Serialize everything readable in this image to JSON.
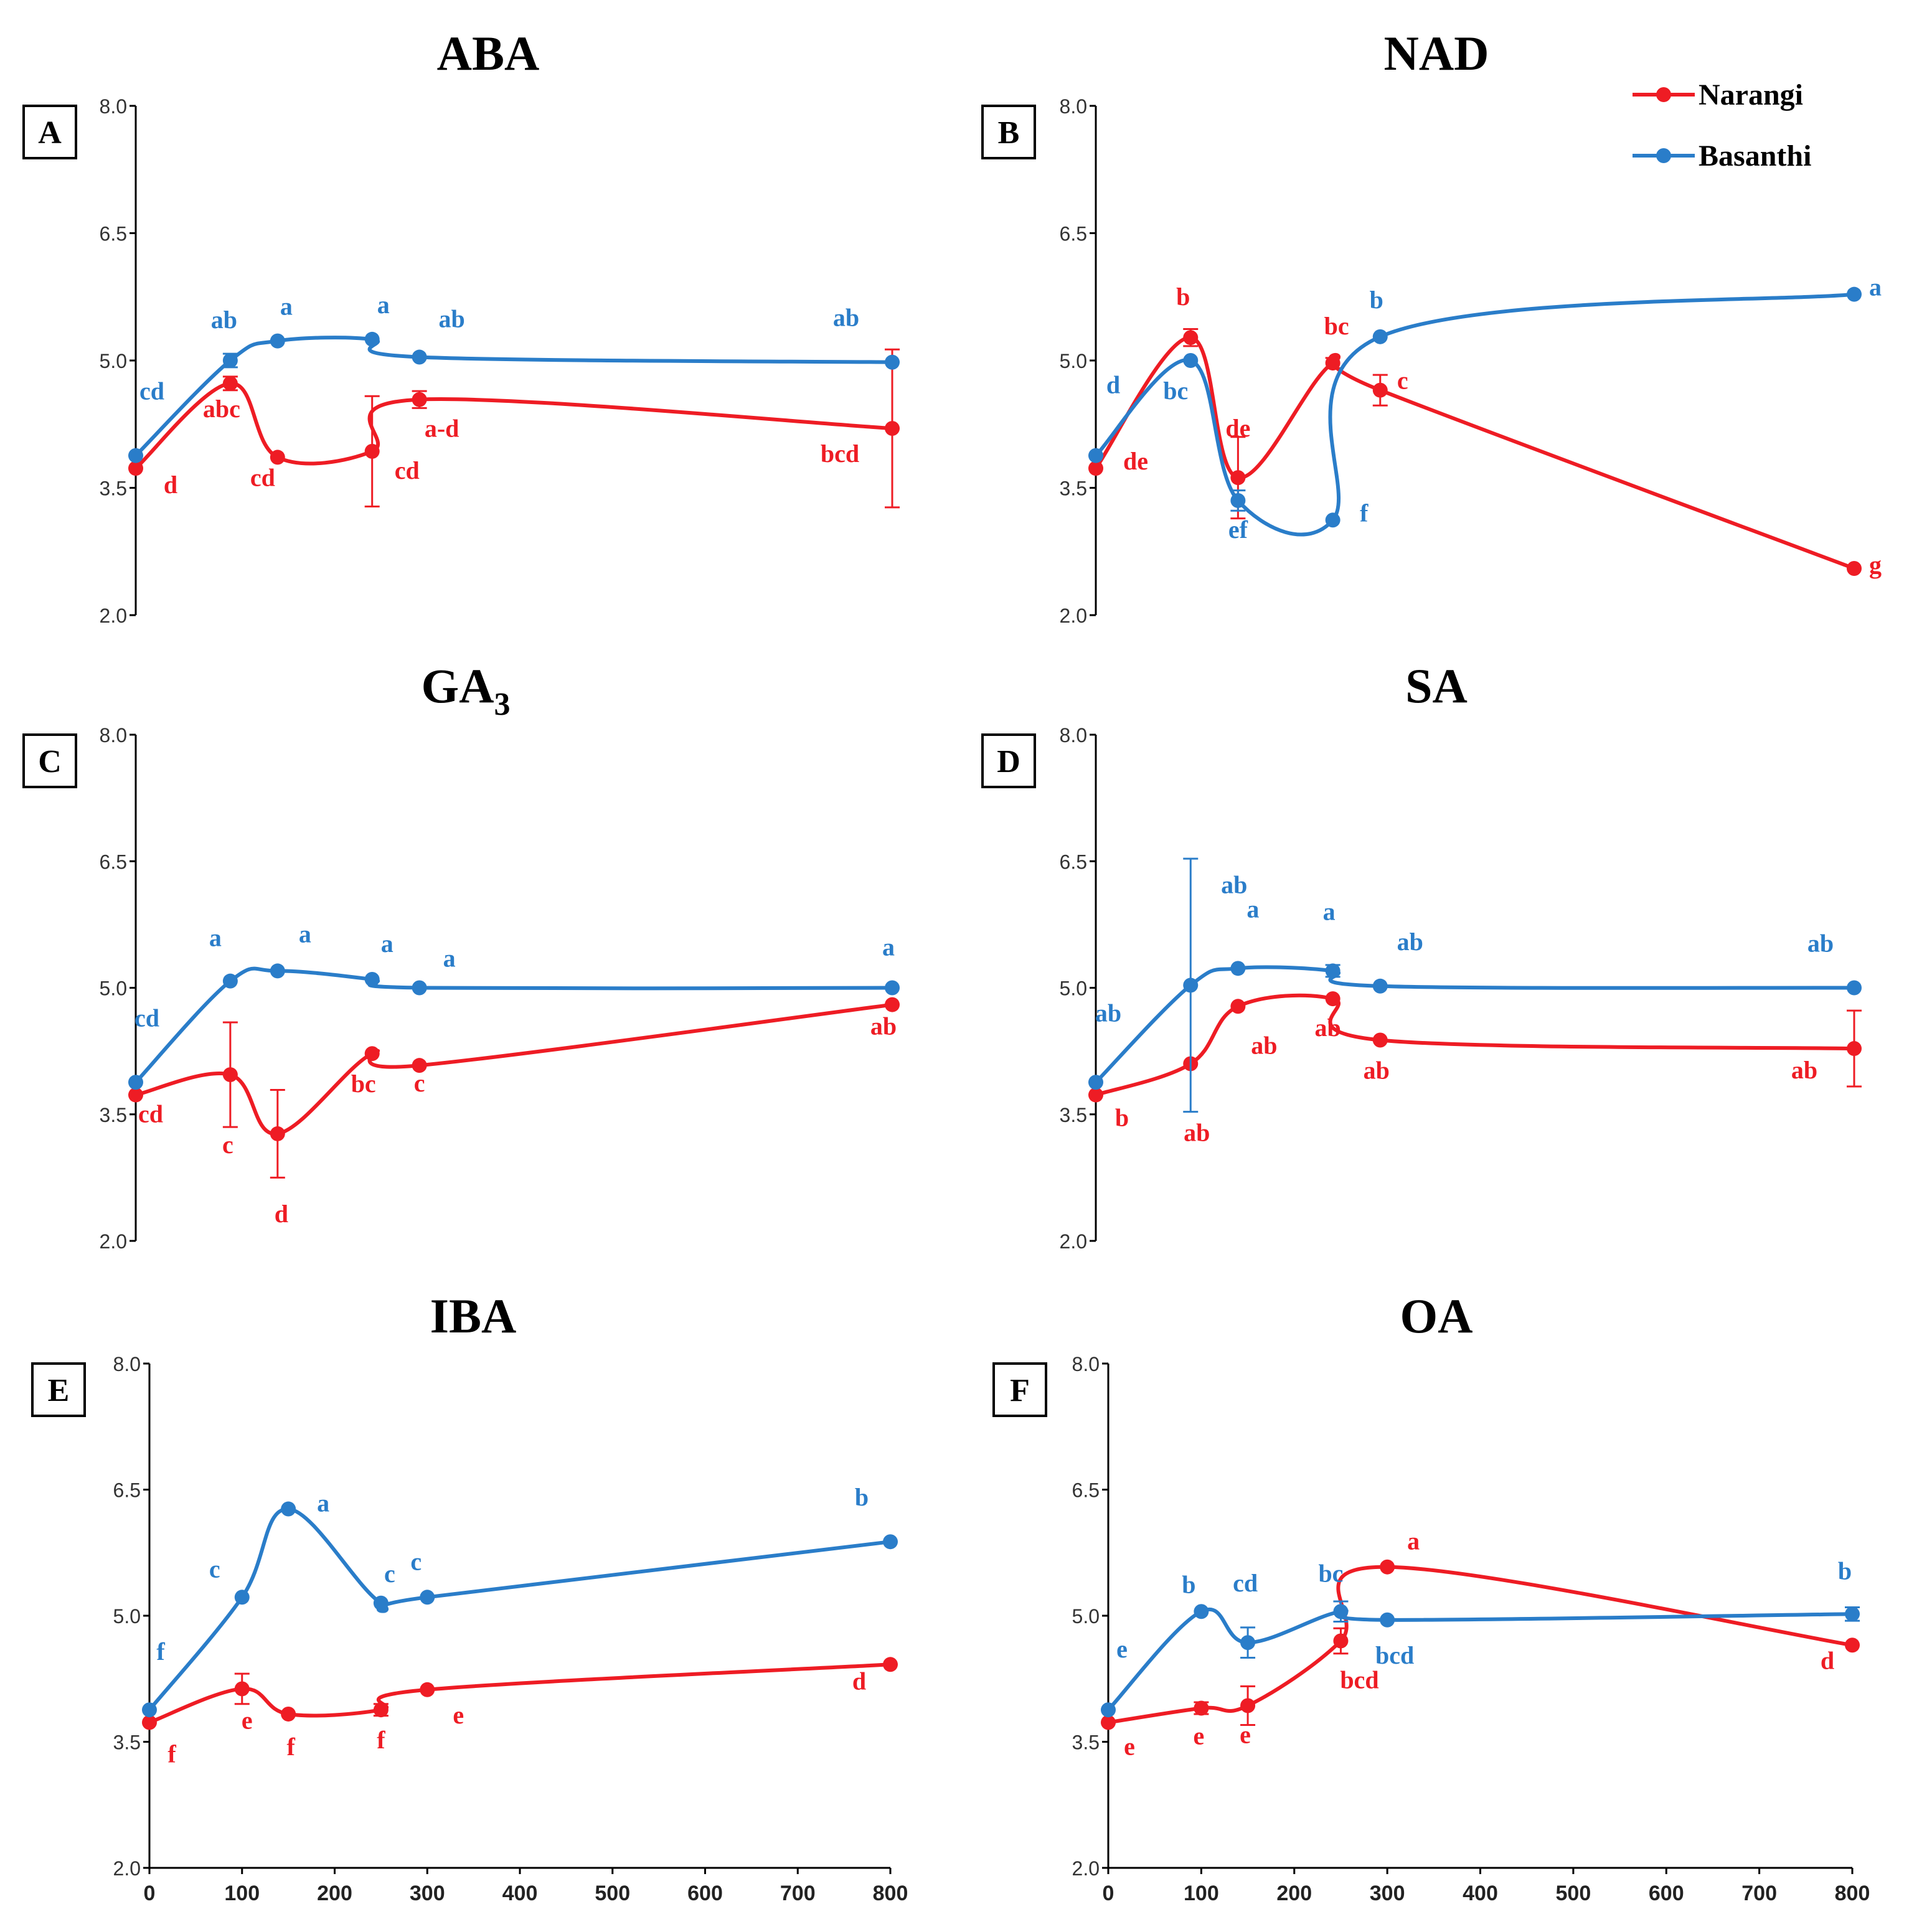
{
  "colors": {
    "narangi": "#ee1c24",
    "basanthi": "#2a7dc9",
    "axis": "#000000"
  },
  "legend": {
    "narangi": "Narangi",
    "basanthi": "Basanthi",
    "placement": "top-right of panel B"
  },
  "axis": {
    "y_ticks": [
      "8.0",
      "6.5",
      "5.0",
      "3.5",
      "2.0"
    ],
    "x_ticks": [
      "0",
      "100",
      "200",
      "300",
      "400",
      "500",
      "600",
      "700",
      "800"
    ]
  },
  "chart_data": [
    {
      "panel": "A",
      "title": "ABA",
      "type": "line",
      "ylim": [
        2.0,
        8.0
      ],
      "xlim": [
        0,
        800
      ],
      "series": [
        {
          "name": "Basanthi",
          "x": [
            0,
            100,
            150,
            250,
            300,
            800
          ],
          "y": [
            3.88,
            5.0,
            5.23,
            5.25,
            5.04,
            4.98
          ],
          "err": [
            0,
            0.08,
            0,
            0,
            0,
            0
          ],
          "labels": [
            "cd",
            "ab",
            "a",
            "a",
            "ab",
            "ab"
          ]
        },
        {
          "name": "Narangi",
          "x": [
            0,
            100,
            150,
            250,
            300,
            800
          ],
          "y": [
            3.73,
            4.73,
            3.86,
            3.93,
            4.54,
            4.2
          ],
          "err": [
            0,
            0.08,
            0,
            0.65,
            0.1,
            0.93
          ],
          "labels": [
            "d",
            "abc",
            "cd",
            "cd",
            "a-d",
            "bcd"
          ]
        }
      ]
    },
    {
      "panel": "B",
      "title": "NAD",
      "type": "line",
      "ylim": [
        2.0,
        8.0
      ],
      "xlim": [
        0,
        800
      ],
      "series": [
        {
          "name": "Basanthi",
          "x": [
            0,
            100,
            150,
            250,
            300,
            800
          ],
          "y": [
            3.88,
            5.0,
            3.35,
            3.12,
            5.28,
            5.78
          ],
          "err": [
            0,
            0,
            0.12,
            0,
            0,
            0
          ],
          "labels": [
            "d",
            "bc",
            "ef",
            "f",
            "b",
            "a"
          ]
        },
        {
          "name": "Narangi",
          "x": [
            0,
            100,
            150,
            250,
            300,
            800
          ],
          "y": [
            3.73,
            5.27,
            3.62,
            4.97,
            4.65,
            2.55
          ],
          "err": [
            0,
            0.1,
            0.48,
            0.06,
            0.18,
            0
          ],
          "labels": [
            "de",
            "b",
            "de",
            "bc",
            "c",
            "g"
          ]
        }
      ]
    },
    {
      "panel": "C",
      "title": "GA",
      "subscript": "3",
      "type": "line",
      "ylim": [
        2.0,
        8.0
      ],
      "xlim": [
        0,
        800
      ],
      "series": [
        {
          "name": "Basanthi",
          "x": [
            0,
            100,
            150,
            250,
            300,
            800
          ],
          "y": [
            3.88,
            5.08,
            5.2,
            5.1,
            5.0,
            5.0
          ],
          "err": [
            0,
            0,
            0,
            0,
            0,
            0
          ],
          "labels": [
            "cd",
            "a",
            "a",
            "a",
            "a",
            "a"
          ]
        },
        {
          "name": "Narangi",
          "x": [
            0,
            100,
            150,
            250,
            300,
            800
          ],
          "y": [
            3.73,
            3.97,
            3.27,
            4.22,
            4.08,
            4.8
          ],
          "err": [
            0,
            0.62,
            0.52,
            0,
            0,
            0
          ],
          "labels": [
            "cd",
            "c",
            "d",
            "bc",
            "c",
            "ab"
          ]
        }
      ]
    },
    {
      "panel": "D",
      "title": "SA",
      "type": "line",
      "ylim": [
        2.0,
        8.0
      ],
      "xlim": [
        0,
        800
      ],
      "series": [
        {
          "name": "Basanthi",
          "x": [
            0,
            100,
            150,
            250,
            300,
            800
          ],
          "y": [
            3.88,
            5.03,
            5.23,
            5.2,
            5.02,
            5.0
          ],
          "err": [
            0,
            1.5,
            0,
            0.07,
            0,
            0
          ],
          "labels": [
            "ab",
            "ab",
            "a",
            "a",
            "ab",
            "ab"
          ]
        },
        {
          "name": "Narangi",
          "x": [
            0,
            100,
            150,
            250,
            300,
            800
          ],
          "y": [
            3.73,
            4.1,
            4.78,
            4.87,
            4.38,
            4.28
          ],
          "err": [
            0,
            0,
            0,
            0,
            0,
            0.45
          ],
          "labels": [
            "b",
            "ab",
            "ab",
            "ab",
            "ab",
            "ab"
          ]
        }
      ]
    },
    {
      "panel": "E",
      "title": "IBA",
      "type": "line",
      "ylim": [
        2.0,
        8.0
      ],
      "xlim": [
        0,
        800
      ],
      "series": [
        {
          "name": "Basanthi",
          "x": [
            0,
            100,
            150,
            250,
            300,
            800
          ],
          "y": [
            3.88,
            5.22,
            6.27,
            5.15,
            5.22,
            5.88
          ],
          "err": [
            0,
            0,
            0,
            0,
            0,
            0
          ],
          "labels": [
            "f",
            "c",
            "a",
            "c",
            "c",
            "b"
          ]
        },
        {
          "name": "Narangi",
          "x": [
            0,
            100,
            150,
            250,
            300,
            800
          ],
          "y": [
            3.73,
            4.13,
            3.83,
            3.88,
            4.12,
            4.42
          ],
          "err": [
            0,
            0.18,
            0,
            0.07,
            0,
            0
          ],
          "labels": [
            "f",
            "e",
            "f",
            "f",
            "e",
            "d"
          ]
        }
      ]
    },
    {
      "panel": "F",
      "title": "OA",
      "type": "line",
      "ylim": [
        2.0,
        8.0
      ],
      "xlim": [
        0,
        800
      ],
      "series": [
        {
          "name": "Basanthi",
          "x": [
            0,
            100,
            150,
            250,
            300,
            800
          ],
          "y": [
            3.88,
            5.05,
            4.68,
            5.05,
            4.95,
            5.02
          ],
          "err": [
            0,
            0,
            0.18,
            0.12,
            0,
            0.08
          ],
          "labels": [
            "e",
            "b",
            "cd",
            "bc",
            "bcd",
            "b"
          ]
        },
        {
          "name": "Narangi",
          "x": [
            0,
            100,
            150,
            250,
            300,
            800
          ],
          "y": [
            3.73,
            3.9,
            3.93,
            4.7,
            5.58,
            4.65
          ],
          "err": [
            0,
            0.07,
            0.23,
            0.15,
            0,
            0
          ],
          "labels": [
            "e",
            "e",
            "e",
            "bcd",
            "a",
            "d"
          ]
        }
      ]
    }
  ]
}
